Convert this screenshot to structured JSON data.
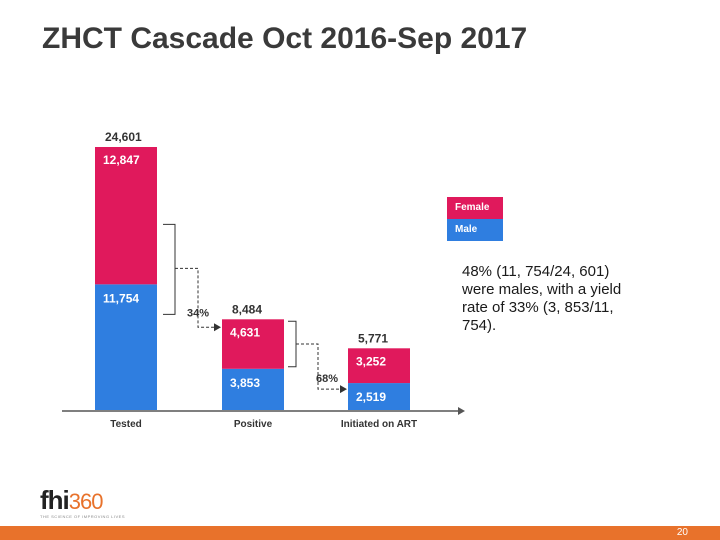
{
  "slide": {
    "title": "ZHCT Cascade Oct 2016-Sep 2017",
    "page_number": "20",
    "note": "48% (11, 754/24, 601) were males, with a yield rate of 33% (3, 853/11, 754).",
    "logo": {
      "main": "fhi",
      "number": "360",
      "tagline": "THE SCIENCE OF IMPROVING LIVES"
    }
  },
  "colors": {
    "female": "#e0195c",
    "male": "#2f7ee0",
    "accent": "#e8722b"
  },
  "chart_data": {
    "type": "bar",
    "stacked": true,
    "categories": [
      "Tested",
      "Positive",
      "Initiated on ART"
    ],
    "series": [
      {
        "name": "Male",
        "values": [
          11754,
          3853,
          2519
        ],
        "labels": [
          "11,754",
          "3,853",
          "2,519"
        ]
      },
      {
        "name": "Female",
        "values": [
          12847,
          4631,
          3252
        ],
        "labels": [
          "12,847",
          "4,631",
          "3,252"
        ]
      }
    ],
    "totals": [
      24601,
      8484,
      5771
    ],
    "total_labels": [
      "24,601",
      "8,484",
      "5,771"
    ],
    "annotations": [
      {
        "from": "Tested",
        "to": "Positive",
        "text": "34%"
      },
      {
        "from": "Positive",
        "to": "Initiated on ART",
        "text": "68%"
      }
    ],
    "legend": [
      "Female",
      "Male"
    ],
    "ylim": [
      0,
      24601
    ],
    "title": "",
    "xlabel": "",
    "ylabel": ""
  }
}
